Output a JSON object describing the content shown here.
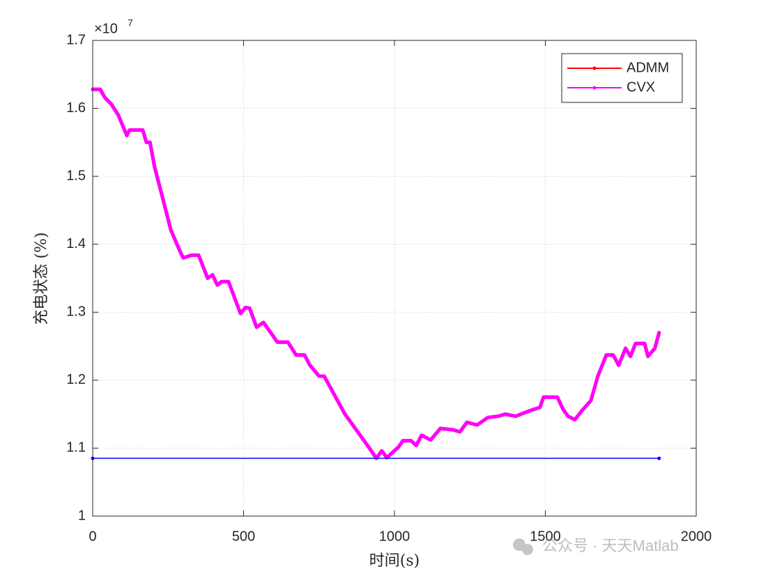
{
  "chart_data": {
    "type": "line",
    "xlabel": "时间(s)",
    "ylabel": "充电状态 (%)",
    "y_multiplier": "×10",
    "y_multiplier_power": "7",
    "watermark": "公众号 · 天天Matlab",
    "xlim": [
      0,
      2000
    ],
    "xticks": [
      0,
      500,
      1000,
      1500,
      2000
    ],
    "ylim": [
      1,
      1.7
    ],
    "yticks": [
      1,
      1.1,
      1.2,
      1.3,
      1.4,
      1.5,
      1.6,
      1.7
    ],
    "grid": true,
    "legend": "upper right",
    "series": [
      {
        "name": "ADMM",
        "color": "#ff0000",
        "x": [
          0,
          25,
          40,
          62,
          85,
          113,
          122,
          166,
          178,
          190,
          205,
          229,
          259,
          289,
          300,
          328,
          351,
          381,
          397,
          413,
          427,
          450,
          490,
          506,
          520,
          543,
          566,
          612,
          647,
          674,
          702,
          720,
          750,
          767,
          836,
          917,
          940,
          958,
          975,
          1014,
          1028,
          1055,
          1072,
          1090,
          1120,
          1152,
          1194,
          1217,
          1240,
          1274,
          1309,
          1344,
          1367,
          1402,
          1448,
          1482,
          1494,
          1540,
          1559,
          1575,
          1598,
          1621,
          1651,
          1674,
          1702,
          1725,
          1743,
          1766,
          1782,
          1799,
          1829,
          1840,
          1863,
          1877
        ],
        "values": [
          1.628,
          1.628,
          1.616,
          1.606,
          1.59,
          1.56,
          1.568,
          1.568,
          1.55,
          1.55,
          1.514,
          1.473,
          1.421,
          1.39,
          1.38,
          1.384,
          1.384,
          1.35,
          1.355,
          1.34,
          1.345,
          1.345,
          1.298,
          1.307,
          1.306,
          1.278,
          1.285,
          1.256,
          1.256,
          1.237,
          1.237,
          1.222,
          1.206,
          1.206,
          1.15,
          1.1,
          1.085,
          1.096,
          1.086,
          1.102,
          1.111,
          1.111,
          1.104,
          1.119,
          1.112,
          1.129,
          1.127,
          1.124,
          1.138,
          1.134,
          1.145,
          1.147,
          1.15,
          1.147,
          1.155,
          1.16,
          1.175,
          1.175,
          1.157,
          1.147,
          1.142,
          1.155,
          1.17,
          1.206,
          1.237,
          1.237,
          1.222,
          1.247,
          1.235,
          1.254,
          1.254,
          1.235,
          1.247,
          1.27
        ]
      },
      {
        "name": "CVX",
        "color": "#ff00ff",
        "x": [
          0,
          25,
          40,
          62,
          85,
          113,
          122,
          166,
          178,
          190,
          205,
          229,
          259,
          289,
          300,
          328,
          351,
          381,
          397,
          413,
          427,
          450,
          490,
          506,
          520,
          543,
          566,
          612,
          647,
          674,
          702,
          720,
          750,
          767,
          836,
          917,
          940,
          958,
          975,
          1014,
          1028,
          1055,
          1072,
          1090,
          1120,
          1152,
          1194,
          1217,
          1240,
          1274,
          1309,
          1344,
          1367,
          1402,
          1448,
          1482,
          1494,
          1540,
          1559,
          1575,
          1598,
          1621,
          1651,
          1674,
          1702,
          1725,
          1743,
          1766,
          1782,
          1799,
          1829,
          1840,
          1863,
          1877
        ],
        "values": [
          1.628,
          1.628,
          1.616,
          1.606,
          1.59,
          1.56,
          1.568,
          1.568,
          1.55,
          1.55,
          1.514,
          1.473,
          1.421,
          1.39,
          1.38,
          1.384,
          1.384,
          1.35,
          1.355,
          1.34,
          1.345,
          1.345,
          1.298,
          1.307,
          1.306,
          1.278,
          1.285,
          1.256,
          1.256,
          1.237,
          1.237,
          1.222,
          1.206,
          1.206,
          1.15,
          1.1,
          1.085,
          1.096,
          1.086,
          1.102,
          1.111,
          1.111,
          1.104,
          1.119,
          1.112,
          1.129,
          1.127,
          1.124,
          1.138,
          1.134,
          1.145,
          1.147,
          1.15,
          1.147,
          1.155,
          1.16,
          1.175,
          1.175,
          1.157,
          1.147,
          1.142,
          1.155,
          1.17,
          1.206,
          1.237,
          1.237,
          1.222,
          1.247,
          1.235,
          1.254,
          1.254,
          1.235,
          1.247,
          1.27
        ]
      },
      {
        "color": "#0000ff",
        "x": [
          0,
          1877
        ],
        "values": [
          1.085,
          1.085
        ]
      }
    ]
  }
}
